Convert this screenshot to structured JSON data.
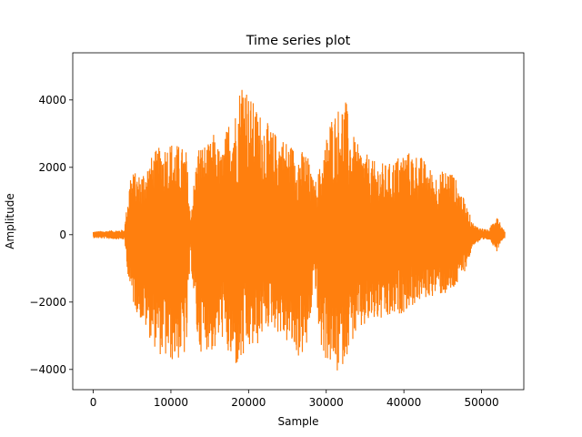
{
  "chart_data": {
    "type": "line",
    "title": "Time series plot",
    "xlabel": "Sample",
    "ylabel": "Amplitude",
    "xlim": [
      -2640,
      55440
    ],
    "ylim": [
      -4600,
      5400
    ],
    "xticks": [
      0,
      10000,
      20000,
      30000,
      40000,
      50000
    ],
    "xtick_labels": [
      "0",
      "10000",
      "20000",
      "30000",
      "40000",
      "50000"
    ],
    "yticks": [
      -4000,
      -2000,
      0,
      2000,
      4000
    ],
    "ytick_labels": [
      "−4000",
      "−2000",
      "0",
      "2000",
      "4000"
    ],
    "grid": false,
    "line_color": "#ff7f0e",
    "series": [
      {
        "envelope": {
          "x": [
            0,
            4000,
            4800,
            6000,
            8000,
            9000,
            10000,
            11500,
            12000,
            12500,
            13500,
            15000,
            15500,
            16500,
            17500,
            18500,
            19000,
            19500,
            20000,
            21000,
            22000,
            23000,
            24000,
            25500,
            26500,
            27500,
            28000,
            28500,
            29000,
            29500,
            30500,
            31500,
            32500,
            33000,
            34000,
            36000,
            38000,
            40000,
            42000,
            44000,
            46000,
            47000,
            48000,
            49000,
            50000,
            51000,
            52000,
            52500,
            53000
          ],
          "upper": [
            100,
            150,
            1900,
            1800,
            2500,
            2700,
            2800,
            2600,
            2500,
            600,
            2700,
            2700,
            3000,
            2400,
            3500,
            3800,
            4700,
            5000,
            4200,
            3800,
            3500,
            3100,
            3000,
            2700,
            2500,
            2500,
            1900,
            1500,
            1900,
            2300,
            3500,
            3800,
            4100,
            3200,
            2700,
            2200,
            2100,
            2500,
            2400,
            1800,
            2000,
            1500,
            900,
            300,
            200,
            150,
            700,
            300,
            100
          ],
          "lower": [
            -100,
            -150,
            -1900,
            -2500,
            -3400,
            -3700,
            -3800,
            -3700,
            -3600,
            -600,
            -3500,
            -3400,
            -3600,
            -3000,
            -3800,
            -4000,
            -4000,
            -3700,
            -3500,
            -3400,
            -2900,
            -2700,
            -3000,
            -3400,
            -3700,
            -3500,
            -2500,
            -1200,
            -3000,
            -3600,
            -3900,
            -4200,
            -3700,
            -3300,
            -3000,
            -2600,
            -2600,
            -2300,
            -2000,
            -1800,
            -1800,
            -1500,
            -1000,
            -300,
            -200,
            -150,
            -500,
            -200,
            -100
          ]
        }
      }
    ]
  }
}
